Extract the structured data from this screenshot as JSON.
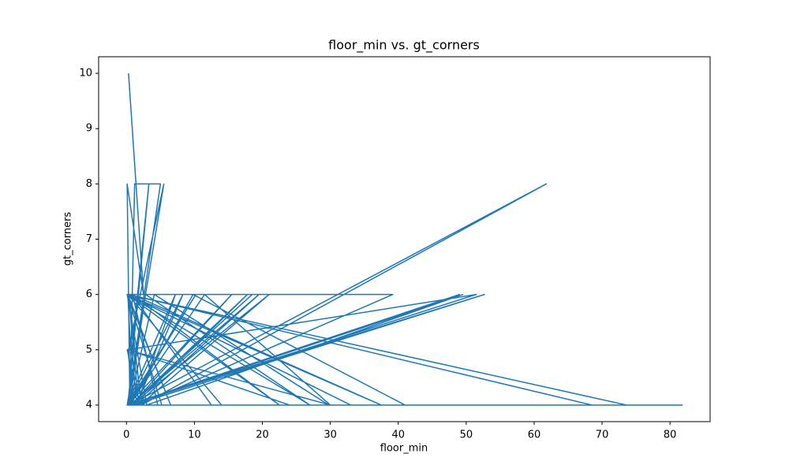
{
  "chart_data": {
    "type": "line",
    "title": "floor_min vs. gt_corners",
    "xlabel": "floor_min",
    "ylabel": "gt_corners",
    "x": [
      0.3,
      2.5,
      0.1,
      0.5,
      1.2,
      5.0,
      0.2,
      3.3,
      0.8,
      1.5,
      7.2,
      0.1,
      29.8,
      4.1,
      0.4,
      61.8,
      2.2,
      0.3,
      18.5,
      0.6,
      81.8,
      0.1,
      52.7,
      1.0,
      0.2,
      73.6,
      0.5,
      49.5,
      3.0,
      0.1,
      39.2,
      1.8,
      0.3,
      68.5,
      0.2,
      15.5,
      0.7,
      21.0,
      2.0,
      0.1,
      30.0,
      11.5,
      0.4,
      51.5,
      0.3,
      5.5,
      0.1,
      41.0,
      9.8,
      0.6,
      17.8,
      1.1,
      0.2,
      24.0,
      5.2,
      0.1,
      37.5,
      0.8,
      12.5,
      0.3,
      49.0,
      0.2,
      8.3,
      1.4,
      19.5,
      0.5,
      33.0,
      0.1,
      27.0,
      2.8,
      0.4,
      14.0,
      0.2,
      6.5,
      0.1,
      22.5,
      0.9,
      4.6,
      0.3,
      10.2,
      0.1
    ],
    "series": [
      {
        "name": "gt_corners",
        "color": "#1f77b4",
        "values": [
          10,
          6,
          8,
          4,
          8,
          8,
          4,
          8,
          5,
          4,
          6,
          4,
          4,
          6,
          4,
          8,
          4,
          6,
          6,
          4,
          4,
          4,
          6,
          4,
          6,
          4,
          4,
          6,
          4,
          6,
          6,
          4,
          6,
          4,
          4,
          6,
          4,
          6,
          4,
          5,
          4,
          6,
          4,
          6,
          5,
          8,
          4,
          4,
          6,
          4,
          6,
          4,
          5,
          4,
          4,
          6,
          4,
          6,
          4,
          4,
          6,
          4,
          6,
          4,
          6,
          4,
          4,
          6,
          4,
          6,
          4,
          4,
          6,
          4,
          6,
          4,
          6,
          4,
          4,
          6,
          4
        ]
      }
    ],
    "xlim": [
      -4.1,
      85.9
    ],
    "ylim": [
      3.7,
      10.3
    ],
    "xticks": [
      0,
      10,
      20,
      30,
      40,
      50,
      60,
      70,
      80
    ],
    "yticks": [
      4,
      5,
      6,
      7,
      8,
      9,
      10
    ]
  }
}
